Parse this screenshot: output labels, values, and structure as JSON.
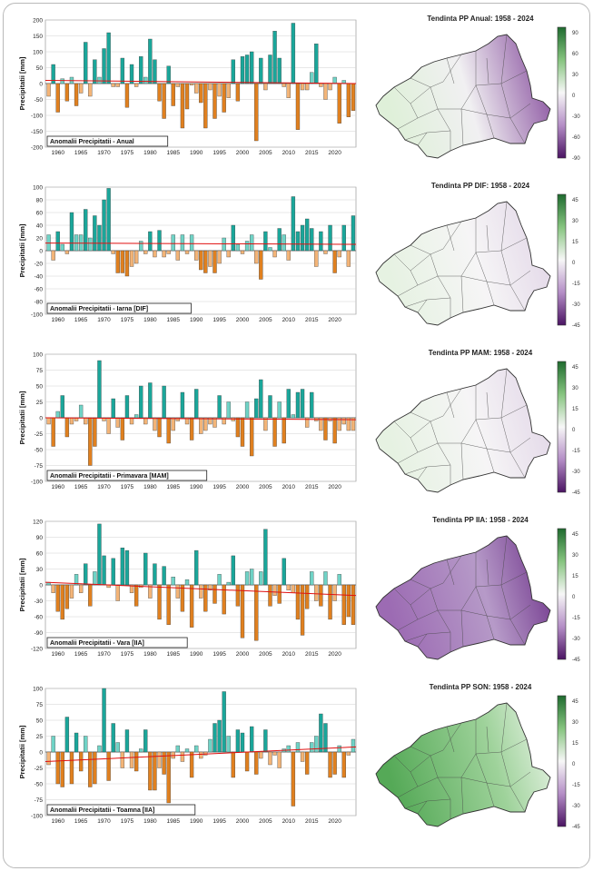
{
  "chart_data": [
    {
      "type": "bar",
      "title": "Anomalii Precipitatii - Anual",
      "ylabel": "Precipitatii [mm]",
      "ylim": [
        -200,
        200
      ],
      "yticks": [
        -200,
        -150,
        -100,
        -50,
        0,
        50,
        100,
        150,
        200
      ],
      "xticks": [
        1960,
        1965,
        1970,
        1975,
        1980,
        1985,
        1990,
        1995,
        2000,
        2005,
        2010,
        2015,
        2020
      ],
      "trend": [
        10,
        0
      ],
      "x": [
        1958,
        1959,
        1960,
        1961,
        1962,
        1963,
        1964,
        1965,
        1966,
        1967,
        1968,
        1969,
        1970,
        1971,
        1972,
        1973,
        1974,
        1975,
        1976,
        1977,
        1978,
        1979,
        1980,
        1981,
        1982,
        1983,
        1984,
        1985,
        1986,
        1987,
        1988,
        1989,
        1990,
        1991,
        1992,
        1993,
        1994,
        1995,
        1996,
        1997,
        1998,
        1999,
        2000,
        2001,
        2002,
        2003,
        2004,
        2005,
        2006,
        2007,
        2008,
        2009,
        2010,
        2011,
        2012,
        2013,
        2014,
        2015,
        2016,
        2017,
        2018,
        2019,
        2020,
        2021,
        2022,
        2023,
        2024
      ],
      "values": [
        -40,
        60,
        -90,
        15,
        -55,
        20,
        -70,
        -30,
        130,
        -40,
        75,
        20,
        110,
        160,
        -10,
        -10,
        80,
        -75,
        60,
        -10,
        85,
        20,
        140,
        75,
        -55,
        -110,
        55,
        -70,
        -10,
        -140,
        -80,
        -5,
        -30,
        -60,
        -140,
        -20,
        -110,
        -40,
        -90,
        -45,
        75,
        -55,
        85,
        90,
        100,
        -180,
        80,
        -20,
        90,
        165,
        80,
        -10,
        -45,
        190,
        -145,
        -20,
        -20,
        35,
        125,
        -10,
        -50,
        -20,
        20,
        -125,
        10,
        -105,
        -85
      ]
    },
    {
      "type": "bar",
      "title": "Anomalii Precipitatii - Iarna [DIF]",
      "ylabel": "Precipitatii [mm]",
      "ylim": [
        -100,
        100
      ],
      "yticks": [
        -100,
        -80,
        -60,
        -40,
        -20,
        0,
        20,
        40,
        60,
        80,
        100
      ],
      "xticks": [
        1960,
        1965,
        1970,
        1975,
        1980,
        1985,
        1990,
        1995,
        2000,
        2005,
        2010,
        2015,
        2020
      ],
      "trend": [
        12,
        10
      ],
      "x": [
        1958,
        1959,
        1960,
        1961,
        1962,
        1963,
        1964,
        1965,
        1966,
        1967,
        1968,
        1969,
        1970,
        1971,
        1972,
        1973,
        1974,
        1975,
        1976,
        1977,
        1978,
        1979,
        1980,
        1981,
        1982,
        1983,
        1984,
        1985,
        1986,
        1987,
        1988,
        1989,
        1990,
        1991,
        1992,
        1993,
        1994,
        1995,
        1996,
        1997,
        1998,
        1999,
        2000,
        2001,
        2002,
        2003,
        2004,
        2005,
        2006,
        2007,
        2008,
        2009,
        2010,
        2011,
        2012,
        2013,
        2014,
        2015,
        2016,
        2017,
        2018,
        2019,
        2020,
        2021,
        2022,
        2023,
        2024
      ],
      "values": [
        25,
        -15,
        30,
        10,
        -5,
        60,
        25,
        25,
        65,
        20,
        55,
        40,
        80,
        98,
        -5,
        -35,
        -35,
        -40,
        -25,
        -20,
        15,
        -5,
        30,
        -10,
        32,
        -10,
        -5,
        25,
        -15,
        25,
        -5,
        25,
        -15,
        -30,
        -35,
        -25,
        -35,
        -20,
        20,
        -10,
        40,
        10,
        -5,
        15,
        25,
        -20,
        -45,
        30,
        5,
        -10,
        35,
        25,
        -15,
        85,
        30,
        40,
        50,
        35,
        -25,
        30,
        -5,
        40,
        -35,
        -10,
        40,
        -25,
        55
      ]
    },
    {
      "type": "bar",
      "title": "Anomalii Precipitatii - Primavara [MAM]",
      "ylabel": "Precipitatii [mm]",
      "ylim": [
        -100,
        100
      ],
      "yticks": [
        -100,
        -75,
        -50,
        -25,
        0,
        25,
        50,
        75,
        100
      ],
      "xticks": [
        1960,
        1965,
        1970,
        1975,
        1980,
        1985,
        1990,
        1995,
        2000,
        2005,
        2010,
        2015,
        2020
      ],
      "trend": [
        0,
        -3
      ],
      "x": [
        1958,
        1959,
        1960,
        1961,
        1962,
        1963,
        1964,
        1965,
        1966,
        1967,
        1968,
        1969,
        1970,
        1971,
        1972,
        1973,
        1974,
        1975,
        1976,
        1977,
        1978,
        1979,
        1980,
        1981,
        1982,
        1983,
        1984,
        1985,
        1986,
        1987,
        1988,
        1989,
        1990,
        1991,
        1992,
        1993,
        1994,
        1995,
        1996,
        1997,
        1998,
        1999,
        2000,
        2001,
        2002,
        2003,
        2004,
        2005,
        2006,
        2007,
        2008,
        2009,
        2010,
        2011,
        2012,
        2013,
        2014,
        2015,
        2016,
        2017,
        2018,
        2019,
        2020,
        2021,
        2022,
        2023,
        2024
      ],
      "values": [
        -10,
        -45,
        10,
        35,
        -30,
        -10,
        -5,
        20,
        -10,
        -75,
        -45,
        90,
        -5,
        -25,
        30,
        -15,
        -35,
        35,
        -10,
        5,
        50,
        -10,
        55,
        -20,
        -30,
        50,
        -40,
        -20,
        -5,
        40,
        -10,
        -35,
        45,
        -25,
        -20,
        -10,
        -15,
        35,
        -10,
        25,
        -5,
        -30,
        -45,
        25,
        -60,
        30,
        60,
        -20,
        35,
        -45,
        25,
        -40,
        45,
        5,
        40,
        45,
        -15,
        40,
        -5,
        -20,
        -35,
        -5,
        -40,
        -20,
        -10,
        -20,
        -20
      ]
    },
    {
      "type": "bar",
      "title": "Anomalii Precipitatii - Vara [IIA]",
      "ylabel": "Precipitatii [mm]",
      "ylim": [
        -120,
        120
      ],
      "yticks": [
        -120,
        -90,
        -60,
        -30,
        0,
        30,
        60,
        90,
        120
      ],
      "xticks": [
        1960,
        1965,
        1970,
        1975,
        1980,
        1985,
        1990,
        1995,
        2000,
        2005,
        2010,
        2015,
        2020
      ],
      "trend": [
        5,
        -20
      ],
      "x": [
        1958,
        1959,
        1960,
        1961,
        1962,
        1963,
        1964,
        1965,
        1966,
        1967,
        1968,
        1969,
        1970,
        1971,
        1972,
        1973,
        1974,
        1975,
        1976,
        1977,
        1978,
        1979,
        1980,
        1981,
        1982,
        1983,
        1984,
        1985,
        1986,
        1987,
        1988,
        1989,
        1990,
        1991,
        1992,
        1993,
        1994,
        1995,
        1996,
        1997,
        1998,
        1999,
        2000,
        2001,
        2002,
        2003,
        2004,
        2005,
        2006,
        2007,
        2008,
        2009,
        2010,
        2011,
        2012,
        2013,
        2014,
        2015,
        2016,
        2017,
        2018,
        2019,
        2020,
        2021,
        2022,
        2023,
        2024
      ],
      "values": [
        5,
        -15,
        -50,
        -65,
        -45,
        -25,
        20,
        -15,
        40,
        -40,
        25,
        115,
        55,
        -5,
        50,
        -30,
        70,
        65,
        -15,
        -40,
        -5,
        60,
        -25,
        40,
        -65,
        35,
        -75,
        15,
        -25,
        -50,
        10,
        -80,
        65,
        -25,
        -50,
        -10,
        -35,
        20,
        -55,
        5,
        55,
        -40,
        -100,
        25,
        30,
        -105,
        25,
        105,
        -40,
        -20,
        -35,
        50,
        -10,
        -15,
        -65,
        -95,
        -45,
        25,
        -30,
        -40,
        25,
        -65,
        -30,
        20,
        -75,
        -60,
        -75
      ]
    },
    {
      "type": "bar",
      "title": "Anomalii Precipitatii - Toamna [IIA]",
      "ylabel": "Precipitatii [mm]",
      "ylim": [
        -100,
        100
      ],
      "yticks": [
        -100,
        -75,
        -50,
        -25,
        0,
        25,
        50,
        75,
        100
      ],
      "xticks": [
        1960,
        1965,
        1970,
        1975,
        1980,
        1985,
        1990,
        1995,
        2000,
        2005,
        2010,
        2015,
        2020
      ],
      "trend": [
        -15,
        8
      ],
      "x": [
        1958,
        1959,
        1960,
        1961,
        1962,
        1963,
        1964,
        1965,
        1966,
        1967,
        1968,
        1969,
        1970,
        1971,
        1972,
        1973,
        1974,
        1975,
        1976,
        1977,
        1978,
        1979,
        1980,
        1981,
        1982,
        1983,
        1984,
        1985,
        1986,
        1987,
        1988,
        1989,
        1990,
        1991,
        1992,
        1993,
        1994,
        1995,
        1996,
        1997,
        1998,
        1999,
        2000,
        2001,
        2002,
        2003,
        2004,
        2005,
        2006,
        2007,
        2008,
        2009,
        2010,
        2011,
        2012,
        2013,
        2014,
        2015,
        2016,
        2017,
        2018,
        2019,
        2020,
        2021,
        2022,
        2023,
        2024
      ],
      "values": [
        -20,
        25,
        -50,
        -55,
        55,
        -50,
        30,
        -30,
        25,
        -55,
        -50,
        10,
        100,
        -45,
        45,
        15,
        -25,
        35,
        -25,
        -30,
        5,
        35,
        -60,
        -60,
        -25,
        -35,
        -80,
        -10,
        10,
        -15,
        5,
        -40,
        10,
        -10,
        -5,
        20,
        45,
        50,
        95,
        25,
        -40,
        35,
        30,
        -30,
        40,
        -35,
        -10,
        35,
        -20,
        -5,
        -25,
        5,
        10,
        -85,
        15,
        -15,
        -35,
        15,
        25,
        60,
        45,
        -40,
        -35,
        10,
        -40,
        -5,
        20
      ]
    }
  ],
  "maps": [
    {
      "title": "Tendinta PP Anual: 1958 - 2024",
      "scale": [
        "90",
        "60",
        "30",
        "0",
        "-30",
        "-60",
        "-90"
      ],
      "tone": "purple-east"
    },
    {
      "title": "Tendinta PP DIF: 1958 - 2024",
      "scale": [
        "45",
        "30",
        "15",
        "0",
        "-15",
        "-30",
        "-45"
      ],
      "tone": "light"
    },
    {
      "title": "Tendinta PP MAM: 1958 - 2024",
      "scale": [
        "45",
        "30",
        "15",
        "0",
        "-15",
        "-30",
        "-45"
      ],
      "tone": "light"
    },
    {
      "title": "Tendinta PP IIA: 1958 - 2024",
      "scale": [
        "45",
        "30",
        "15",
        "0",
        "-15",
        "-30",
        "-45"
      ],
      "tone": "purple"
    },
    {
      "title": "Tendinta PP SON: 1958 - 2024",
      "scale": [
        "45",
        "30",
        "15",
        "0",
        "-15",
        "-30",
        "-45"
      ],
      "tone": "green"
    }
  ]
}
